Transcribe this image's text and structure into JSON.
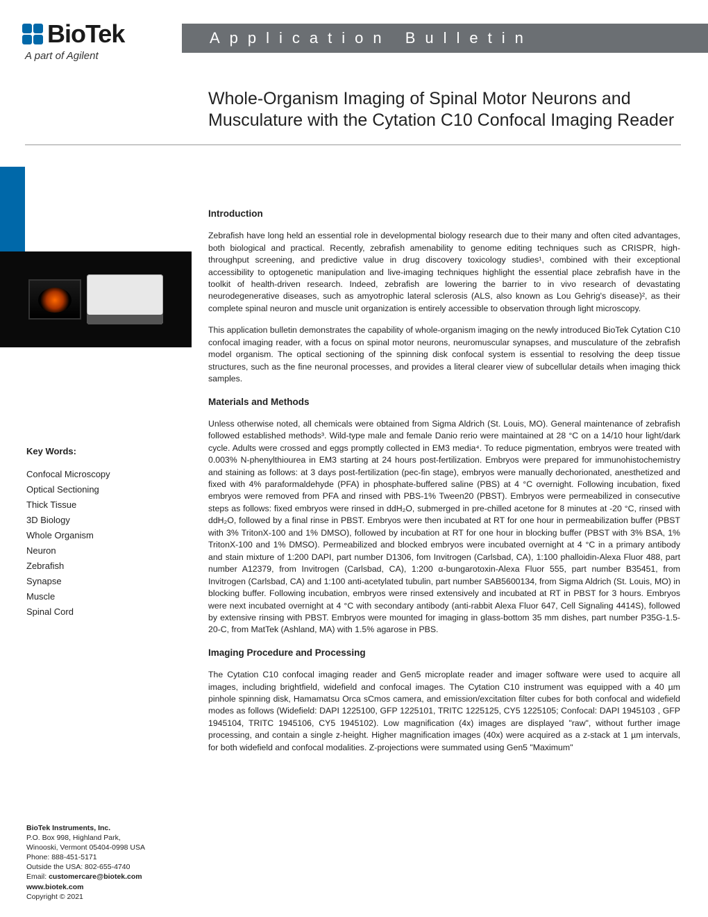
{
  "logo": {
    "name": "BioTek",
    "subtitle": "A part of Agilent",
    "square_colors": [
      "#0068a9",
      "#0068a9",
      "#0068a9",
      "#0068a9"
    ]
  },
  "banner": {
    "text": "Application Bulletin",
    "bg": "#6b6f73",
    "fg": "#ffffff"
  },
  "title": "Whole-Organism Imaging of Spinal Motor Neurons and Musculature with the Cytation C10 Confocal Imaging Reader",
  "blue_bar_color": "#0068a9",
  "sections": {
    "intro_h": "Introduction",
    "intro_p1": "Zebrafish have long held an essential role in developmental biology research due to their many and often cited advantages, both biological and practical. Recently, zebrafish amenability to genome editing techniques such as CRISPR, high-throughput screening, and predictive value in drug discovery toxicology studies¹, combined with their exceptional accessibility to optogenetic manipulation and live-imaging techniques highlight the essential place zebrafish have in the toolkit of health-driven research. Indeed, zebrafish are lowering the barrier to in vivo research of devastating neurodegenerative diseases, such as amyotrophic lateral sclerosis (ALS, also known as Lou Gehrig's disease)², as their complete spinal neuron and muscle unit organization is entirely accessible to observation through light microscopy.",
    "intro_p2": "This application bulletin demonstrates the capability of whole-organism imaging on the newly introduced BioTek Cytation C10 confocal imaging reader, with a focus on spinal motor neurons, neuromuscular synapses, and musculature of the zebrafish model organism. The optical sectioning of the spinning disk confocal system is essential to resolving the deep tissue structures, such as the fine neuronal processes, and provides a literal clearer view of subcellular details when imaging thick samples.",
    "mm_h": "Materials and Methods",
    "mm_p1": "Unless otherwise noted, all chemicals were obtained from Sigma Aldrich (St. Louis, MO). General maintenance of zebrafish followed established methods³. Wild-type male and female Danio rerio were maintained at 28 °C on a 14/10 hour light/dark cycle. Adults were crossed and eggs promptly collected in EM3 media⁴. To reduce pigmentation, embryos were treated with 0.003% N-phenylthiourea in EM3 starting at 24 hours post-fertilization. Embryos were prepared for immunohistochemistry and staining as follows: at 3 days post-fertilization (pec-fin stage), embryos were manually dechorionated, anesthetized and fixed with 4% paraformaldehyde (PFA) in phosphate-buffered saline (PBS) at 4 °C overnight. Following incubation, fixed embryos were removed from PFA and rinsed with PBS-1% Tween20 (PBST). Embryos were permeabilized in consecutive steps as follows: fixed embryos were rinsed in ddH₂O, submerged in pre-chilled acetone for 8 minutes at -20 °C, rinsed with ddH₂O, followed by a final rinse in PBST. Embryos were then incubated at RT for one hour in permeabilization buffer (PBST with 3% TritonX-100 and 1% DMSO), followed by incubation at RT for one hour in blocking buffer (PBST with 3% BSA, 1% TritonX-100 and 1% DMSO). Permeabilized and blocked embryos were incubated overnight at 4 °C in a primary antibody and stain mixture of 1:200 DAPI, part number D1306, fom Invitrogen (Carlsbad, CA), 1:100 phalloidin-Alexa Fluor 488, part number A12379, from Invitrogen (Carlsbad, CA), 1:200 α-bungarotoxin-Alexa Fluor 555, part number B35451, from Invitrogen (Carlsbad, CA) and 1:100 anti-acetylated tubulin, part number SAB5600134, from Sigma Aldrich (St. Louis, MO) in blocking buffer. Following incubation, embryos were rinsed extensively and incubated at RT in PBST for 3 hours. Embryos were next incubated overnight at 4 °C with secondary antibody (anti-rabbit Alexa Fluor 647, Cell Signaling 4414S), followed by extensive rinsing with PBST. Embryos were mounted for imaging in glass-bottom 35 mm dishes, part number P35G-1.5-20-C, from MatTek (Ashland, MA) with 1.5% agarose in PBS.",
    "ipp_h": "Imaging Procedure and Processing",
    "ipp_p1": "The Cytation C10 confocal imaging reader and Gen5 microplate reader and imager software were used to acquire all images, including brightfield, widefield and confocal images. The Cytation C10 instrument was equipped with a 40 µm pinhole spinning disk, Hamamatsu Orca sCmos camera, and emission/excitation filter cubes for both confocal and widefield modes as follows (Widefield: DAPI 1225100, GFP 1225101, TRITC 1225125, CY5 1225105; Confocal: DAPI 1945103 , GFP 1945104, TRITC 1945106, CY5 1945102). Low magnification (4x) images are displayed \"raw\", without further image processing, and contain a single z-height. Higher magnification images (40x) were acquired as a z-stack at 1 µm intervals, for both widefield and confocal modalities. Z-projections were summated using Gen5 \"Maximum\""
  },
  "keywords": {
    "title": "Key Words:",
    "items": [
      "Confocal Microscopy",
      "Optical Sectioning",
      "Thick Tissue",
      "3D Biology",
      "Whole Organism",
      "Neuron",
      "Zebrafish",
      "Synapse",
      "Muscle",
      "Spinal Cord"
    ]
  },
  "contact": {
    "company": "BioTek Instruments, Inc.",
    "addr1": "P.O. Box 998, Highland Park,",
    "addr2": "Winooski, Vermont 05404-0998 USA",
    "phone": "Phone: 888-451-5171",
    "intl": "Outside the USA: 802-655-4740",
    "email_label": "Email: ",
    "email": "customercare@biotek.com",
    "web": "www.biotek.com",
    "copyright": "Copyright © 2021"
  }
}
